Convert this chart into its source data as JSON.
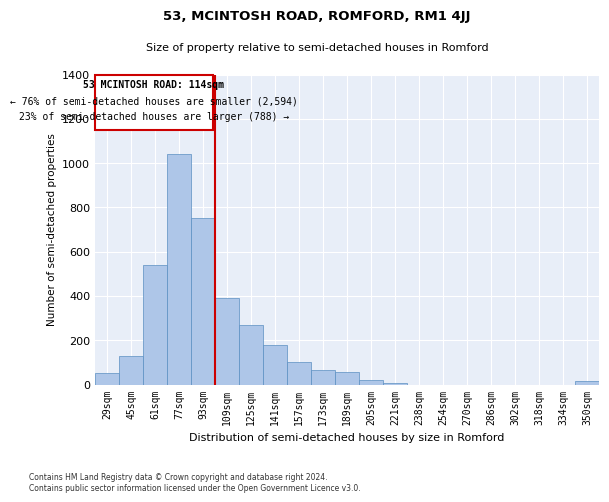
{
  "title": "53, MCINTOSH ROAD, ROMFORD, RM1 4JJ",
  "subtitle": "Size of property relative to semi-detached houses in Romford",
  "xlabel": "Distribution of semi-detached houses by size in Romford",
  "ylabel": "Number of semi-detached properties",
  "footer": "Contains HM Land Registry data © Crown copyright and database right 2024.\nContains public sector information licensed under the Open Government Licence v3.0.",
  "bins": [
    "29sqm",
    "45sqm",
    "61sqm",
    "77sqm",
    "93sqm",
    "109sqm",
    "125sqm",
    "141sqm",
    "157sqm",
    "173sqm",
    "189sqm",
    "205sqm",
    "221sqm",
    "238sqm",
    "254sqm",
    "270sqm",
    "286sqm",
    "302sqm",
    "318sqm",
    "334sqm",
    "350sqm"
  ],
  "bar_values": [
    50,
    130,
    540,
    1040,
    750,
    390,
    270,
    180,
    100,
    65,
    55,
    20,
    5,
    0,
    0,
    0,
    0,
    0,
    0,
    0,
    15
  ],
  "bar_color": "#aec6e8",
  "bar_edgecolor": "#5a8fc2",
  "vline_bin_index": 5,
  "annotation_title": "53 MCINTOSH ROAD: 114sqm",
  "annotation_line1": "← 76% of semi-detached houses are smaller (2,594)",
  "annotation_line2": "23% of semi-detached houses are larger (788) →",
  "ylim": [
    0,
    1400
  ],
  "yticks": [
    0,
    200,
    400,
    600,
    800,
    1000,
    1200,
    1400
  ],
  "bg_color": "#e8eef8",
  "grid_color": "white",
  "vline_color": "#cc0000",
  "box_edgecolor": "#cc0000",
  "box_facecolor": "white"
}
